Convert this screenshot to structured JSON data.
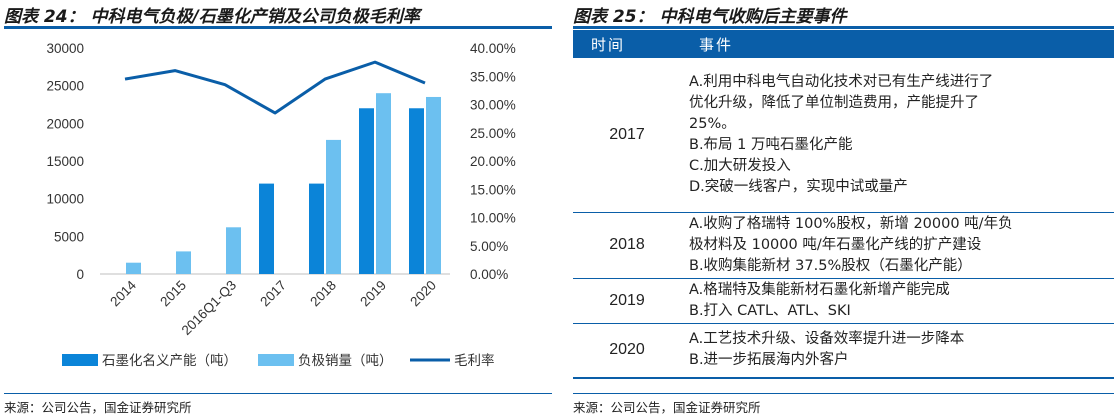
{
  "left_panel": {
    "title": "图表 24： 中科电气负极/石墨化产销及公司负极毛利率",
    "source": "来源：公司公告，国金证券研究所"
  },
  "right_panel": {
    "title": "图表 25： 中科电气收购后主要事件",
    "table": {
      "headers": [
        "时间",
        "事件"
      ],
      "rows": [
        {
          "year": "2017",
          "events": [
            "A.利用中科电气自动化技术对已有生产线进行了",
            "优化升级，降低了单位制造费用，产能提升了",
            "25%。",
            "B.布局 1 万吨石墨化产能",
            "C.加大研发投入",
            "D.突破一线客户，实现中试或量产"
          ]
        },
        {
          "year": "2018",
          "events": [
            "A.收购了格瑞特 100%股权，新增 20000 吨/年负",
            "极材料及 10000 吨/年石墨化产线的扩产建设",
            "B.收购集能新材 37.5%股权（石墨化产能）"
          ]
        },
        {
          "year": "2019",
          "events": [
            "A.格瑞特及集能新材石墨化新增产能完成",
            "B.打入 CATL、ATL、SKI"
          ]
        },
        {
          "year": "2020",
          "events": [
            "A.工艺技术升级、设备效率提升进一步降本",
            "B.进一步拓展海内外客户"
          ]
        }
      ]
    },
    "source": "来源：公司公告，国金证券研究所"
  },
  "chart_data": {
    "type": "bar",
    "categories": [
      "2014",
      "2015",
      "2016Q1-Q3",
      "2017",
      "2018",
      "2019",
      "2020"
    ],
    "series": [
      {
        "name": "石墨化名义产能（吨）",
        "kind": "bar",
        "axis": "left",
        "color": "#0b84d8",
        "values": [
          null,
          null,
          null,
          12000,
          12000,
          22000,
          22000
        ]
      },
      {
        "name": "负极销量（吨）",
        "kind": "bar",
        "axis": "left",
        "color": "#6cc0f0",
        "values": [
          1500,
          3000,
          6200,
          null,
          17800,
          24000,
          23500
        ]
      },
      {
        "name": "毛利率",
        "kind": "line",
        "axis": "right",
        "color": "#0a5ea8",
        "values": [
          0.345,
          0.36,
          0.335,
          0.285,
          0.345,
          0.375,
          0.338
        ]
      }
    ],
    "y_left": {
      "min": 0,
      "max": 30000,
      "ticks": [
        "0",
        "5000",
        "10000",
        "15000",
        "20000",
        "25000",
        "30000"
      ]
    },
    "y_right": {
      "min": 0,
      "max": 0.4,
      "ticks": [
        "0.00%",
        "5.00%",
        "10.00%",
        "15.00%",
        "20.00%",
        "25.00%",
        "30.00%",
        "35.00%",
        "40.00%"
      ]
    },
    "grid": false,
    "legend_position": "bottom"
  }
}
